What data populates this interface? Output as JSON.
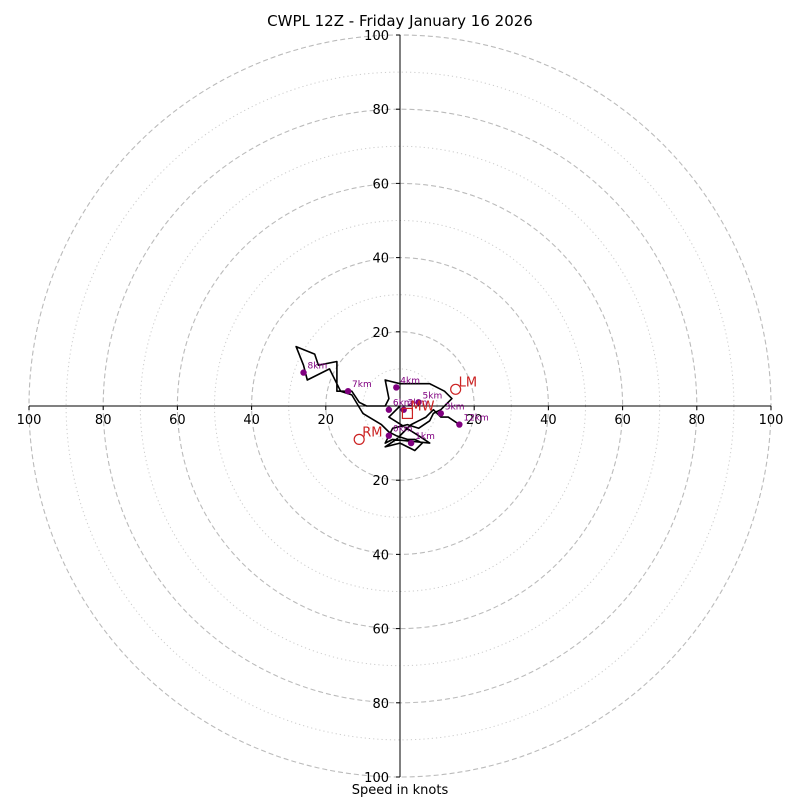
{
  "chart_data": {
    "type": "hodograph",
    "title": "CWPL 12Z - Friday January 16 2026",
    "xlabel": "Speed in knots",
    "xlim": [
      -100,
      100
    ],
    "ylim": [
      -100,
      100
    ],
    "ring_speeds_dashed": [
      20,
      40,
      60,
      80,
      100
    ],
    "ring_speeds_dotted": [
      10,
      30,
      50,
      70,
      90
    ],
    "axis_tick_labels": [
      "100",
      "80",
      "60",
      "40",
      "20"
    ],
    "colors": {
      "hodo_line": "#000000",
      "height_marker": "#800080",
      "motion_marker": "#cc2222",
      "grid": "#bbbbbb"
    },
    "trace": [
      [
        0,
        0
      ],
      [
        -3,
        -3
      ],
      [
        5,
        -8
      ],
      [
        8,
        -10
      ],
      [
        -2,
        -9
      ],
      [
        -4,
        -10
      ],
      [
        -2,
        -6
      ],
      [
        2,
        -5
      ],
      [
        5,
        -6
      ],
      [
        8,
        -4
      ],
      [
        9,
        -2
      ],
      [
        11,
        -1
      ],
      [
        14,
        2
      ],
      [
        12,
        4
      ],
      [
        8,
        6
      ],
      [
        0,
        6
      ],
      [
        -4,
        7
      ],
      [
        -3,
        2
      ],
      [
        -4,
        0
      ],
      [
        -9,
        0
      ],
      [
        -11,
        1
      ],
      [
        -13,
        4
      ],
      [
        -17,
        4
      ],
      [
        -17,
        12
      ],
      [
        -22,
        11
      ],
      [
        -23,
        14
      ],
      [
        -28,
        16
      ],
      [
        -26,
        11
      ],
      [
        -25,
        7
      ],
      [
        -19,
        10
      ],
      [
        -16,
        4
      ],
      [
        -13,
        3
      ],
      [
        -10,
        -2
      ],
      [
        -5,
        -5
      ],
      [
        -3,
        -7
      ],
      [
        -1,
        -8
      ],
      [
        2,
        -9
      ],
      [
        4,
        -9
      ],
      [
        6,
        -10
      ],
      [
        4,
        -12
      ],
      [
        0,
        -10
      ],
      [
        -4,
        -11
      ],
      [
        -1,
        -9
      ],
      [
        1,
        -7
      ],
      [
        3,
        -5
      ],
      [
        5,
        -4
      ],
      [
        7,
        -3
      ],
      [
        9,
        -1
      ],
      [
        11,
        -3
      ],
      [
        13,
        -3
      ],
      [
        16,
        -5
      ]
    ],
    "height_markers": [
      {
        "label": "0km",
        "u": -3,
        "v": -8
      },
      {
        "label": "1km",
        "u": 3,
        "v": -10
      },
      {
        "label": "2km",
        "u": 1,
        "v": -1
      },
      {
        "label": "3km",
        "u": 11,
        "v": -2
      },
      {
        "label": "4km",
        "u": -1,
        "v": 5
      },
      {
        "label": "5km",
        "u": 5,
        "v": 1
      },
      {
        "label": "6km",
        "u": -3,
        "v": -1
      },
      {
        "label": "7km",
        "u": -14,
        "v": 4
      },
      {
        "label": "8km",
        "u": -26,
        "v": 9
      },
      {
        "label": "12km",
        "u": 16,
        "v": -5
      }
    ],
    "storm_motions": [
      {
        "label": "LM",
        "u": 15,
        "v": 4.5,
        "shape": "circle"
      },
      {
        "label": "RM",
        "u": -11,
        "v": -9,
        "shape": "circle"
      },
      {
        "label": "MW",
        "u": 2,
        "v": -2,
        "shape": "square"
      }
    ]
  }
}
